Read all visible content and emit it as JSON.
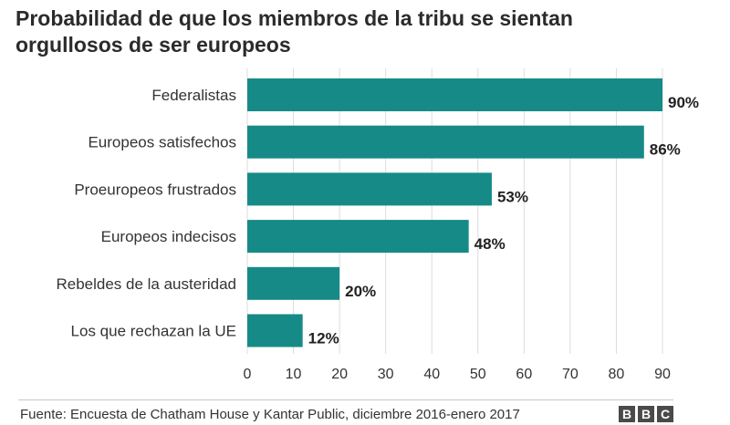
{
  "title": "Probabilidad de que los miembros de la tribu se sientan orgullosos de ser europeos",
  "footer": {
    "source": "Fuente: Encuesta de Chatham House y Kantar Public, diciembre 2016-enero 2017",
    "logo_letters": [
      "B",
      "B",
      "C"
    ]
  },
  "colors": {
    "bar": "#168a86",
    "grid": "#dddddd",
    "text": "#333333"
  },
  "chart_data": {
    "type": "bar",
    "orientation": "horizontal",
    "title": "Probabilidad de que los miembros de la tribu se sientan orgullosos de ser europeos",
    "categories": [
      "Federalistas",
      "Europeos satisfechos",
      "Proeuropeos frustrados",
      "Europeos indecisos",
      "Rebeldes de la austeridad",
      "Los que rechazan la UE"
    ],
    "values": [
      90,
      86,
      53,
      48,
      20,
      12
    ],
    "value_labels": [
      "90%",
      "86%",
      "53%",
      "48%",
      "20%",
      "12%"
    ],
    "xlabel": "",
    "ylabel": "",
    "xlim": [
      0,
      90
    ],
    "xticks": [
      "0",
      "10",
      "20",
      "30",
      "40",
      "50",
      "60",
      "70",
      "80",
      "90"
    ],
    "grid": true
  }
}
